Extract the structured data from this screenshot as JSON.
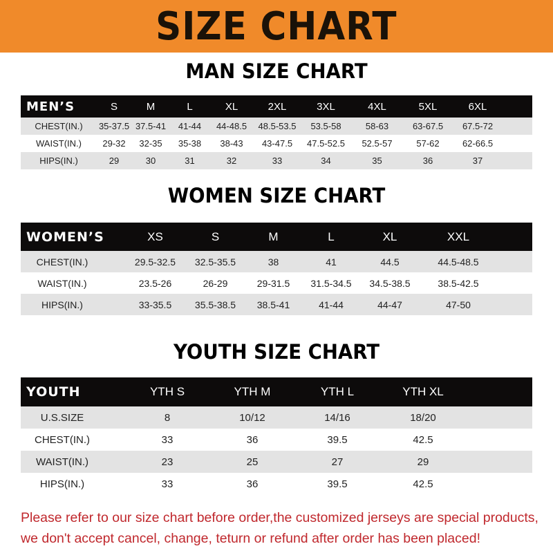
{
  "banner": {
    "title": "SIZE CHART",
    "color": "#f08a2a"
  },
  "men": {
    "title": "MAN SIZE CHART",
    "header": [
      "MEN’S",
      "S",
      "M",
      "L",
      "XL",
      "2XL",
      "3XL",
      "4XL",
      "5XL",
      "6XL"
    ],
    "rows": [
      [
        "CHEST(IN.)",
        "35-37.5",
        "37.5-41",
        "41-44",
        "44-48.5",
        "48.5-53.5",
        "53.5-58",
        "58-63",
        "63-67.5",
        "67.5-72"
      ],
      [
        "WAIST(IN.)",
        "29-32",
        "32-35",
        "35-38",
        "38-43",
        "43-47.5",
        "47.5-52.5",
        "52.5-57",
        "57-62",
        "62-66.5"
      ],
      [
        "HIPS(IN.)",
        "29",
        "30",
        "31",
        "32",
        "33",
        "34",
        "35",
        "36",
        "37"
      ]
    ]
  },
  "women": {
    "title": "WOMEN SIZE CHART",
    "header": [
      "WOMEN’S",
      "XS",
      "S",
      "M",
      "L",
      "XL",
      "XXL"
    ],
    "rows": [
      [
        "CHEST(IN.)",
        "29.5-32.5",
        "32.5-35.5",
        "38",
        "41",
        "44.5",
        "44.5-48.5"
      ],
      [
        "WAIST(IN.)",
        "23.5-26",
        "26-29",
        "29-31.5",
        "31.5-34.5",
        "34.5-38.5",
        "38.5-42.5"
      ],
      [
        "HIPS(IN.)",
        "33-35.5",
        "35.5-38.5",
        "38.5-41",
        "41-44",
        "44-47",
        "47-50"
      ]
    ]
  },
  "youth": {
    "title": "YOUTH SIZE CHART",
    "header": [
      "YOUTH",
      "YTH S",
      "YTH M",
      "YTH L",
      "YTH XL"
    ],
    "rows": [
      [
        "U.S.SIZE",
        "8",
        "10/12",
        "14/16",
        "18/20"
      ],
      [
        "CHEST(IN.)",
        "33",
        "36",
        "39.5",
        "42.5"
      ],
      [
        "WAIST(IN.)",
        "23",
        "25",
        "27",
        "29"
      ],
      [
        "HIPS(IN.)",
        "33",
        "36",
        "39.5",
        "42.5"
      ]
    ]
  },
  "note": {
    "line1": "Please refer to our size chart before order,the customized jerseys are special products,",
    "line2": "we don't accept cancel, change, teturn or refund after order has been placed!",
    "color": "#c0282d"
  }
}
